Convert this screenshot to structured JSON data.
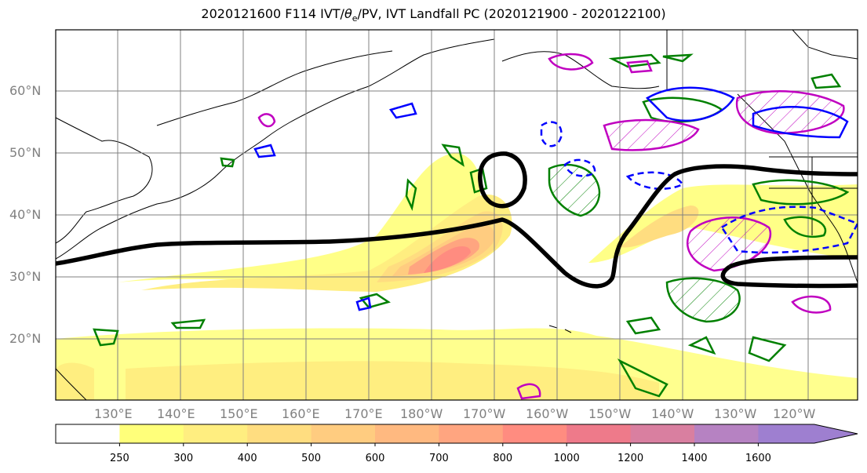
{
  "title": {
    "prefix": "2020121600 F114 IVT/",
    "theta": "θ",
    "theta_sub": "e",
    "suffix": "/PV, IVT Landfall PC (2020121900 - 2020122100)"
  },
  "lat_labels": [
    "60°N",
    "50°N",
    "40°N",
    "30°N",
    "20°N"
  ],
  "lon_labels": [
    "130°E",
    "140°E",
    "150°E",
    "160°E",
    "170°E",
    "180°W",
    "170°W",
    "160°W",
    "150°W",
    "140°W",
    "130°W",
    "120°W"
  ],
  "colorbar": {
    "ticks": [
      "250",
      "300",
      "400",
      "500",
      "600",
      "700",
      "800",
      "1000",
      "1200",
      "1400",
      "1600"
    ],
    "colors": [
      "#ffffff",
      "#ffff7a",
      "#ffee80",
      "#ffdd80",
      "#ffcc80",
      "#ffb980",
      "#ffa580",
      "#ff8c80",
      "#ee7a8a",
      "#d97fa0",
      "#b682c2",
      "#9e7fd0"
    ]
  },
  "legend_colors": {
    "ivt_line": "#000000",
    "theta_e": "#008000",
    "pv_positive": "#0000ff",
    "pv_dashed": "#0000ff",
    "magenta": "#c000c0"
  }
}
